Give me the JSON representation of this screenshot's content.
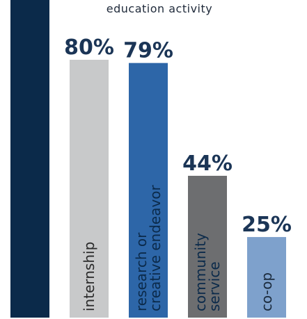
{
  "header_text": "education  activity",
  "chart_data": {
    "type": "bar",
    "categories": [
      {
        "lines": [
          ""
        ],
        "value": 100,
        "label": "",
        "color": "#0b2a4a",
        "text_color": "#ffffff"
      },
      {
        "lines": [
          "internship"
        ],
        "value": 80,
        "label": "80%",
        "color": "#c8c9ca",
        "text_color": "#2a2a2a"
      },
      {
        "lines": [
          "research or",
          "creative endeavor"
        ],
        "value": 79,
        "label": "79%",
        "color": "#2d66a8",
        "text_color": "#0b2a4a"
      },
      {
        "lines": [
          "community",
          "service"
        ],
        "value": 44,
        "label": "44%",
        "color": "#6d6e70",
        "text_color": "#0b2a4a"
      },
      {
        "lines": [
          "co-op"
        ],
        "value": 25,
        "label": "25%",
        "color": "#7ea1cc",
        "text_color": "#1b2b3d"
      }
    ],
    "ylim": [
      0,
      100
    ],
    "unit": "%"
  }
}
